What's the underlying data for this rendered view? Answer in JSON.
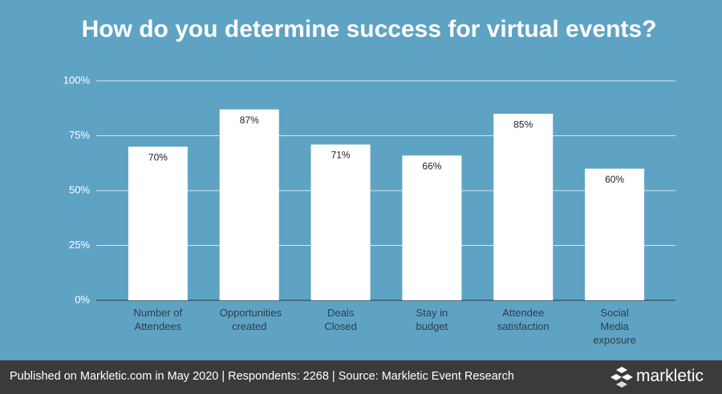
{
  "chart_data": {
    "type": "bar",
    "title": "How do you determine success for virtual events?",
    "categories": [
      "Number of Attendees",
      "Opportunities created",
      "Deals Closed",
      "Stay in budget",
      "Attendee satisfaction",
      "Social Media exposure"
    ],
    "values": [
      70,
      87,
      71,
      66,
      85,
      60
    ],
    "value_labels": [
      "70%",
      "87%",
      "71%",
      "66%",
      "85%",
      "60%"
    ],
    "color": "#ffffff",
    "ylim": [
      0,
      100
    ],
    "yticks": [
      {
        "value": 0,
        "label": "0%"
      },
      {
        "value": 25,
        "label": "25%"
      },
      {
        "value": 50,
        "label": "50%"
      },
      {
        "value": 75,
        "label": "75%"
      },
      {
        "value": 100,
        "label": "100%"
      }
    ],
    "grid": true,
    "footer": "Published on Markletic.com in May 2020 | Respondents: 2268 | Source: Markletic Event Research",
    "logo": "markletic"
  }
}
